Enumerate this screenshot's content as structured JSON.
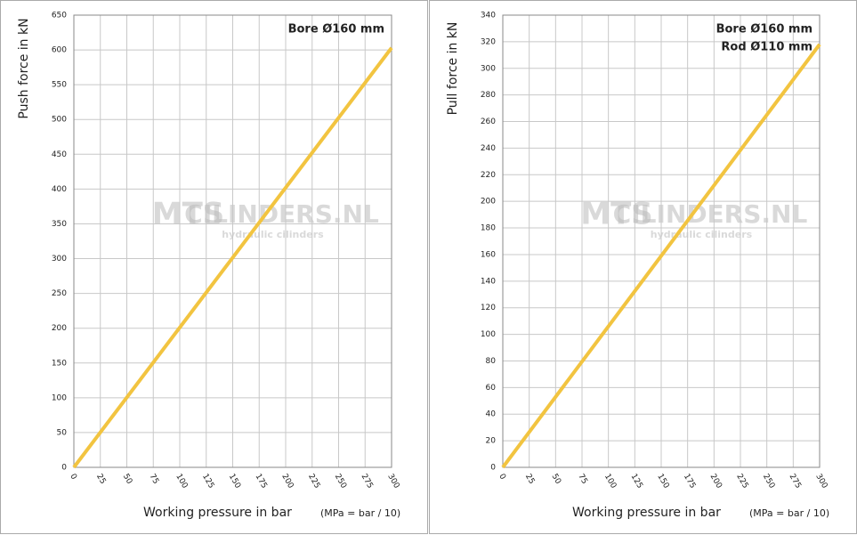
{
  "chart_data": [
    {
      "type": "line",
      "y_label": "Push force in kN",
      "x_label": "Working pressure in bar",
      "x_note": "(MPa = bar / 10)",
      "annotations": [
        "Bore Ø160 mm"
      ],
      "watermark": [
        "MTS",
        "CILINDERS.NL",
        "hydraulic cilinders"
      ],
      "x": [
        0,
        300
      ],
      "series": [
        {
          "color": "#f2c440",
          "values": [
            0,
            603
          ]
        }
      ],
      "xlim": [
        0,
        300
      ],
      "xticks": [
        0,
        25,
        50,
        75,
        100,
        125,
        150,
        175,
        200,
        225,
        250,
        275,
        300
      ],
      "ylim": [
        0,
        650
      ],
      "yticks": [
        0,
        50,
        100,
        150,
        200,
        250,
        300,
        350,
        400,
        450,
        500,
        550,
        600,
        650
      ],
      "grid": true
    },
    {
      "type": "line",
      "y_label": "Pull force in kN",
      "x_label": "Working pressure in bar",
      "x_note": "(MPa = bar / 10)",
      "annotations": [
        "Bore Ø160 mm",
        "Rod Ø110 mm"
      ],
      "watermark": [
        "MTS",
        "CILINDERS.NL",
        "hydraulic cilinders"
      ],
      "x": [
        0,
        300
      ],
      "series": [
        {
          "color": "#f2c440",
          "values": [
            0,
            318
          ]
        }
      ],
      "xlim": [
        0,
        300
      ],
      "xticks": [
        0,
        25,
        50,
        75,
        100,
        125,
        150,
        175,
        200,
        225,
        250,
        275,
        300
      ],
      "ylim": [
        0,
        340
      ],
      "yticks": [
        0,
        20,
        40,
        60,
        80,
        100,
        120,
        140,
        160,
        180,
        200,
        220,
        240,
        260,
        280,
        300,
        320,
        340
      ],
      "grid": true
    }
  ]
}
